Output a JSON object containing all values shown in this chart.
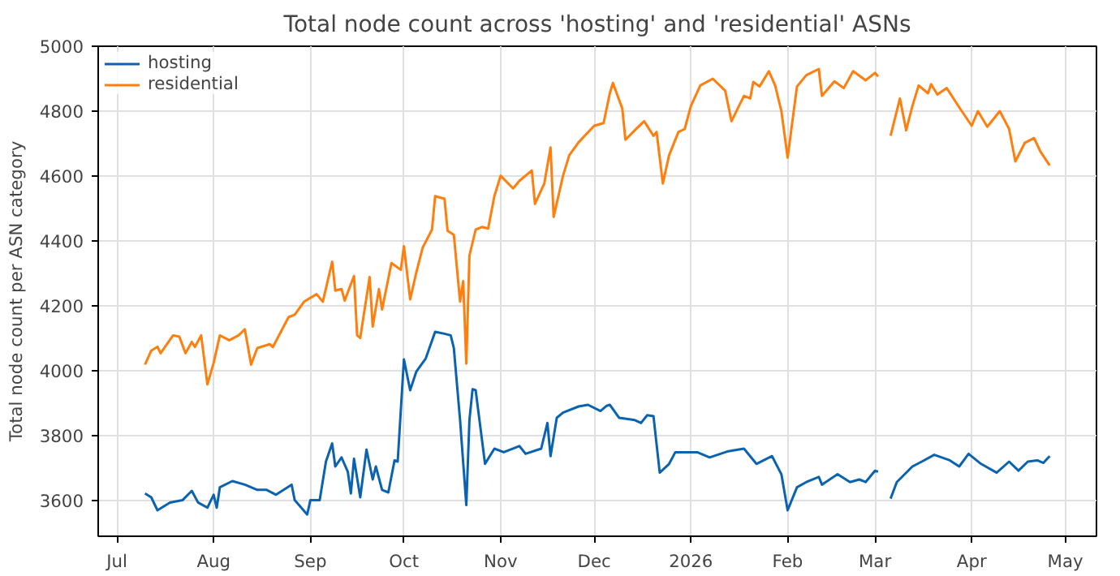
{
  "chart_data": {
    "type": "line",
    "title": "Total node count across 'hosting' and 'residential' ASNs",
    "ylabel": "Total node count per ASN category",
    "xlim": [
      "2025-06-25",
      "2026-05-11"
    ],
    "ylim": [
      3490,
      5000
    ],
    "xticks": [
      {
        "value": "2025-07-01",
        "label": "Jul"
      },
      {
        "value": "2025-08-01",
        "label": "Aug"
      },
      {
        "value": "2025-09-01",
        "label": "Sep"
      },
      {
        "value": "2025-10-01",
        "label": "Oct"
      },
      {
        "value": "2025-11-01",
        "label": "Nov"
      },
      {
        "value": "2025-12-01",
        "label": "Dec"
      },
      {
        "value": "2026-01-01",
        "label": "2026"
      },
      {
        "value": "2026-02-01",
        "label": "Feb"
      },
      {
        "value": "2026-03-01",
        "label": "Mar"
      },
      {
        "value": "2026-04-01",
        "label": "Apr"
      },
      {
        "value": "2026-05-01",
        "label": "May"
      }
    ],
    "yticks": [
      3600,
      3800,
      4000,
      4200,
      4400,
      4600,
      4800,
      5000
    ],
    "grid": true,
    "legend": "top left",
    "series": [
      {
        "name": "hosting",
        "color": "#0b63b0",
        "x": [
          "2025-07-10",
          "2025-07-12",
          "2025-07-14",
          "2025-07-18",
          "2025-07-22",
          "2025-07-25",
          "2025-07-27",
          "2025-07-30",
          "2025-08-01",
          "2025-08-02",
          "2025-08-03",
          "2025-08-07",
          "2025-08-11",
          "2025-08-15",
          "2025-08-18",
          "2025-08-21",
          "2025-08-26",
          "2025-08-27",
          "2025-08-31",
          "2025-09-01",
          "2025-09-04",
          "2025-09-06",
          "2025-09-08",
          "2025-09-09",
          "2025-09-11",
          "2025-09-13",
          "2025-09-14",
          "2025-09-15",
          "2025-09-17",
          "2025-09-19",
          "2025-09-21",
          "2025-09-22",
          "2025-09-24",
          "2025-09-26",
          "2025-09-28",
          "2025-09-29",
          "2025-10-01",
          "2025-10-03",
          "2025-10-05",
          "2025-10-08",
          "2025-10-11",
          "2025-10-14",
          "2025-10-16",
          "2025-10-17",
          "2025-10-19",
          "2025-10-21",
          "2025-10-22",
          "2025-10-23",
          "2025-10-24",
          "2025-10-27",
          "2025-10-30",
          "2025-11-02",
          "2025-11-07",
          "2025-11-09",
          "2025-11-14",
          "2025-11-16",
          "2025-11-17",
          "2025-11-19",
          "2025-11-21",
          "2025-11-26",
          "2025-11-29",
          "2025-12-03",
          "2025-12-05",
          "2025-12-06",
          "2025-12-09",
          "2025-12-14",
          "2025-12-16",
          "2025-12-18",
          "2025-12-20",
          "2025-12-22",
          "2025-12-25",
          "2025-12-27",
          "2026-01-03",
          "2026-01-07",
          "2026-01-13",
          "2026-01-18",
          "2026-01-22",
          "2026-01-27",
          "2026-01-30",
          "2026-02-01",
          "2026-02-04",
          "2026-02-07",
          "2026-02-11",
          "2026-02-12",
          "2026-02-17",
          "2026-02-21",
          "2026-02-24",
          "2026-02-26",
          "2026-03-01",
          "2026-03-02",
          "2026-03-04",
          "2026-03-06",
          "2026-03-08",
          "2026-03-13",
          "2026-03-16",
          "2026-03-20",
          "2026-03-25",
          "2026-03-28",
          "2026-03-31",
          "2026-04-04",
          "2026-04-09",
          "2026-04-13",
          "2026-04-16",
          "2026-04-19",
          "2026-04-22",
          "2026-04-24",
          "2026-04-26"
        ],
        "values": [
          3622,
          3610,
          3570,
          3594,
          3601,
          3630,
          3594,
          3578,
          3618,
          3578,
          3641,
          3660,
          3649,
          3633,
          3633,
          3618,
          3649,
          3601,
          3557,
          3601,
          3601,
          3720,
          3776,
          3705,
          3733,
          3689,
          3622,
          3729,
          3610,
          3757,
          3665,
          3705,
          3633,
          3625,
          3724,
          3720,
          4035,
          3940,
          3998,
          4038,
          4120,
          4114,
          4109,
          4070,
          3848,
          3586,
          3848,
          3943,
          3940,
          3713,
          3760,
          3749,
          3768,
          3744,
          3760,
          3839,
          3737,
          3855,
          3871,
          3890,
          3895,
          3876,
          3892,
          3895,
          3855,
          3848,
          3839,
          3863,
          3860,
          3686,
          3713,
          3749,
          3749,
          3733,
          3752,
          3760,
          3713,
          3737,
          3681,
          3570,
          3641,
          3657,
          3673,
          3649,
          3681,
          3657,
          3665,
          3657,
          3692,
          3689,
          null,
          3606,
          3657,
          3705,
          3720,
          3741,
          3724,
          3705,
          3744,
          3713,
          3686,
          3720,
          3692,
          3720,
          3724,
          3716,
          3737
        ]
      },
      {
        "name": "residential",
        "color": "#ff7f0e",
        "x": [
          "2025-07-10",
          "2025-07-12",
          "2025-07-14",
          "2025-07-15",
          "2025-07-19",
          "2025-07-21",
          "2025-07-23",
          "2025-07-25",
          "2025-07-26",
          "2025-07-28",
          "2025-07-30",
          "2025-08-01",
          "2025-08-03",
          "2025-08-06",
          "2025-08-09",
          "2025-08-11",
          "2025-08-13",
          "2025-08-15",
          "2025-08-19",
          "2025-08-20",
          "2025-08-25",
          "2025-08-27",
          "2025-08-30",
          "2025-09-03",
          "2025-09-05",
          "2025-09-08",
          "2025-09-09",
          "2025-09-11",
          "2025-09-12",
          "2025-09-15",
          "2025-09-16",
          "2025-09-17",
          "2025-09-20",
          "2025-09-21",
          "2025-09-23",
          "2025-09-24",
          "2025-09-27",
          "2025-09-30",
          "2025-10-01",
          "2025-10-03",
          "2025-10-05",
          "2025-10-07",
          "2025-10-10",
          "2025-10-11",
          "2025-10-14",
          "2025-10-15",
          "2025-10-17",
          "2025-10-19",
          "2025-10-20",
          "2025-10-21",
          "2025-10-22",
          "2025-10-24",
          "2025-10-26",
          "2025-10-28",
          "2025-10-30",
          "2025-11-01",
          "2025-11-05",
          "2025-11-07",
          "2025-11-11",
          "2025-11-12",
          "2025-11-15",
          "2025-11-17",
          "2025-11-18",
          "2025-11-21",
          "2025-11-23",
          "2025-11-26",
          "2025-12-01",
          "2025-12-04",
          "2025-12-06",
          "2025-12-07",
          "2025-12-10",
          "2025-12-11",
          "2025-12-14",
          "2025-12-17",
          "2025-12-20",
          "2025-12-21",
          "2025-12-23",
          "2025-12-25",
          "2025-12-28",
          "2025-12-30",
          "2026-01-01",
          "2026-01-04",
          "2026-01-08",
          "2026-01-12",
          "2026-01-14",
          "2026-01-18",
          "2026-01-20",
          "2026-01-21",
          "2026-01-23",
          "2026-01-26",
          "2026-01-28",
          "2026-01-30",
          "2026-02-01",
          "2026-02-04",
          "2026-02-07",
          "2026-02-11",
          "2026-02-12",
          "2026-02-16",
          "2026-02-19",
          "2026-02-22",
          "2026-02-26",
          "2026-03-01",
          "2026-03-02",
          "2026-03-04",
          "2026-03-06",
          "2026-03-09",
          "2026-03-11",
          "2026-03-13",
          "2026-03-15",
          "2026-03-18",
          "2026-03-19",
          "2026-03-21",
          "2026-03-24",
          "2026-03-28",
          "2026-04-01",
          "2026-04-03",
          "2026-04-06",
          "2026-04-10",
          "2026-04-13",
          "2026-04-15",
          "2026-04-18",
          "2026-04-21",
          "2026-04-23",
          "2026-04-26"
        ],
        "values": [
          4019,
          4062,
          4074,
          4054,
          4109,
          4105,
          4054,
          4089,
          4073,
          4109,
          3958,
          4024,
          4109,
          4094,
          4109,
          4128,
          4019,
          4070,
          4082,
          4073,
          4165,
          4173,
          4213,
          4236,
          4213,
          4336,
          4247,
          4252,
          4216,
          4292,
          4109,
          4101,
          4289,
          4136,
          4252,
          4189,
          4332,
          4311,
          4384,
          4220,
          4304,
          4379,
          4435,
          4538,
          4530,
          4431,
          4419,
          4213,
          4276,
          4022,
          4355,
          4435,
          4443,
          4438,
          4538,
          4601,
          4562,
          4585,
          4617,
          4514,
          4577,
          4688,
          4474,
          4601,
          4664,
          4704,
          4755,
          4763,
          4855,
          4887,
          4808,
          4712,
          4741,
          4769,
          4724,
          4736,
          4577,
          4664,
          4736,
          4745,
          4816,
          4879,
          4900,
          4863,
          4769,
          4847,
          4839,
          4890,
          4876,
          4923,
          4879,
          4800,
          4657,
          4876,
          4911,
          4930,
          4847,
          4892,
          4871,
          4923,
          4895,
          4918,
          4907,
          null,
          4724,
          4839,
          4741,
          4816,
          4879,
          4855,
          4883,
          4851,
          4871,
          4812,
          4755,
          4800,
          4752,
          4800,
          4745,
          4645,
          4702,
          4717,
          4676,
          4633
        ]
      }
    ]
  }
}
